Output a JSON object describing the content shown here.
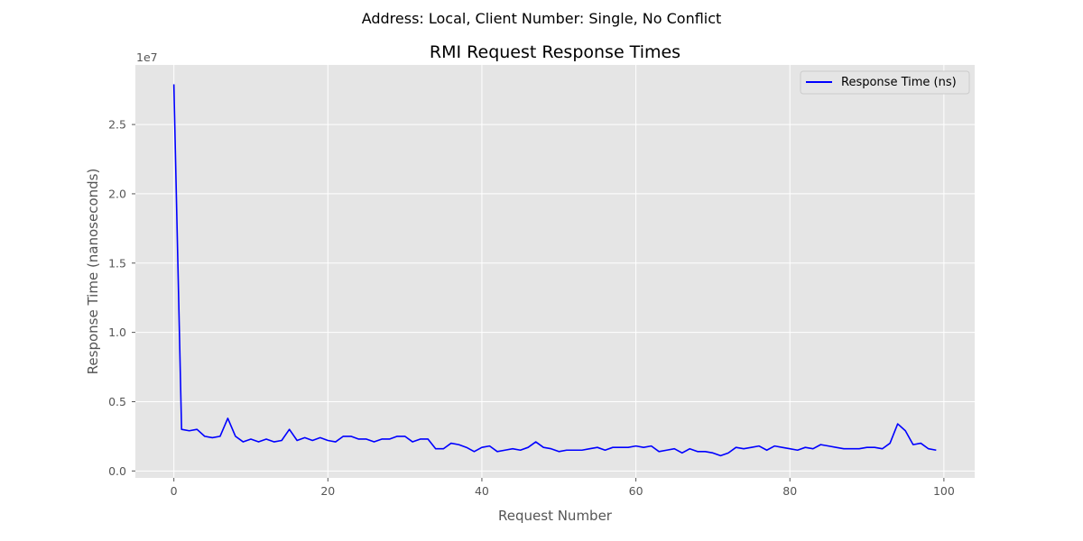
{
  "figure": {
    "suptitle": "Address: Local, Client Number: Single, No Conflict"
  },
  "chart_data": {
    "type": "line",
    "title": "RMI Request Response Times",
    "xlabel": "Request Number",
    "ylabel": "Response Time (nanoseconds)",
    "y_offset_label": "1e7",
    "xlim": [
      -5.0,
      104.0
    ],
    "ylim": [
      -0.05,
      2.93
    ],
    "y_unit_multiplier": 10000000,
    "x_ticks": [
      0,
      20,
      40,
      60,
      80,
      100
    ],
    "x_tick_labels": [
      "0",
      "20",
      "40",
      "60",
      "80",
      "100"
    ],
    "y_ticks": [
      0.0,
      0.5,
      1.0,
      1.5,
      2.0,
      2.5
    ],
    "y_tick_labels": [
      "0.0",
      "0.5",
      "1.0",
      "1.5",
      "2.0",
      "2.5"
    ],
    "grid": true,
    "legend_position": "top-right",
    "series": [
      {
        "name": "Response Time (ns)",
        "color": "#0000ff",
        "x": [
          0,
          1,
          2,
          3,
          4,
          5,
          6,
          7,
          8,
          9,
          10,
          11,
          12,
          13,
          14,
          15,
          16,
          17,
          18,
          19,
          20,
          21,
          22,
          23,
          24,
          25,
          26,
          27,
          28,
          29,
          30,
          31,
          32,
          33,
          34,
          35,
          36,
          37,
          38,
          39,
          40,
          41,
          42,
          43,
          44,
          45,
          46,
          47,
          48,
          49,
          50,
          51,
          52,
          53,
          54,
          55,
          56,
          57,
          58,
          59,
          60,
          61,
          62,
          63,
          64,
          65,
          66,
          67,
          68,
          69,
          70,
          71,
          72,
          73,
          74,
          75,
          76,
          77,
          78,
          79,
          80,
          81,
          82,
          83,
          84,
          85,
          86,
          87,
          88,
          89,
          90,
          91,
          92,
          93,
          94,
          95,
          96,
          97,
          98,
          99
        ],
        "y": [
          2.79,
          0.3,
          0.29,
          0.3,
          0.25,
          0.24,
          0.25,
          0.38,
          0.25,
          0.21,
          0.23,
          0.21,
          0.23,
          0.21,
          0.22,
          0.3,
          0.22,
          0.24,
          0.22,
          0.24,
          0.22,
          0.21,
          0.25,
          0.25,
          0.23,
          0.23,
          0.21,
          0.23,
          0.23,
          0.25,
          0.25,
          0.21,
          0.23,
          0.23,
          0.16,
          0.16,
          0.2,
          0.19,
          0.17,
          0.14,
          0.17,
          0.18,
          0.14,
          0.15,
          0.16,
          0.15,
          0.17,
          0.21,
          0.17,
          0.16,
          0.14,
          0.15,
          0.15,
          0.15,
          0.16,
          0.17,
          0.15,
          0.17,
          0.17,
          0.17,
          0.18,
          0.17,
          0.18,
          0.14,
          0.15,
          0.16,
          0.13,
          0.16,
          0.14,
          0.14,
          0.13,
          0.11,
          0.13,
          0.17,
          0.16,
          0.17,
          0.18,
          0.15,
          0.18,
          0.17,
          0.16,
          0.15,
          0.17,
          0.16,
          0.19,
          0.18,
          0.17,
          0.16,
          0.16,
          0.16,
          0.17,
          0.17,
          0.16,
          0.2,
          0.34,
          0.29,
          0.19,
          0.2,
          0.16,
          0.15
        ]
      }
    ]
  }
}
